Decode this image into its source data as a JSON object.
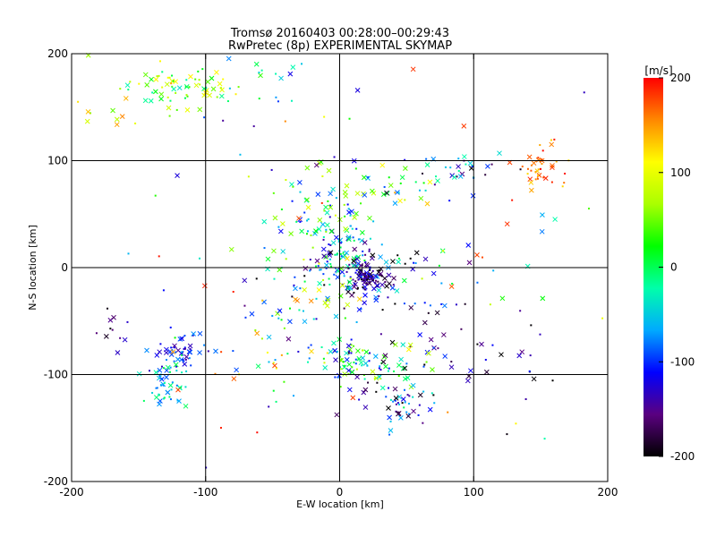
{
  "chart_data": {
    "type": "scatter",
    "title": "Tromsø 20160403 00:28:00–00:29:43",
    "subtitle": "RwPretec (8p) EXPERIMENTAL SKYMAP",
    "xlabel": "E-W location [km]",
    "ylabel": "N-S location [km]",
    "xlim": [
      -200,
      200
    ],
    "ylim": [
      -200,
      200
    ],
    "xticks": [
      "-200",
      "-100",
      "0",
      "100",
      "200"
    ],
    "yticks": [
      "-200",
      "-100",
      "0",
      "100",
      "200"
    ],
    "grid_x": [
      -100,
      0,
      100
    ],
    "grid_y": [
      -100,
      0,
      100
    ],
    "colorbar": {
      "label": "[m/s]",
      "range": [
        -200,
        200
      ],
      "ticks": [
        "200",
        "100",
        "0",
        "-100",
        "-200"
      ],
      "colormap": [
        "#000000",
        "#5a0080",
        "#0000ff",
        "#00aaff",
        "#00ffaa",
        "#00ff00",
        "#aaff00",
        "#ffff00",
        "#ff8800",
        "#ff0000"
      ]
    },
    "markers": [
      "x",
      "dot"
    ],
    "clusters": [
      {
        "cx": -120,
        "cy": 168,
        "sx": 22,
        "sy": 10,
        "n": 70,
        "v": 60,
        "dv": 90
      },
      {
        "cx": -55,
        "cy": 178,
        "sx": 18,
        "sy": 16,
        "n": 18,
        "v": -40,
        "dv": 80
      },
      {
        "cx": -175,
        "cy": 150,
        "sx": 12,
        "sy": 15,
        "n": 8,
        "v": 100,
        "dv": 80
      },
      {
        "cx": 90,
        "cy": 95,
        "sx": 20,
        "sy": 8,
        "n": 30,
        "v": -100,
        "dv": 100
      },
      {
        "cx": 150,
        "cy": 92,
        "sx": 10,
        "sy": 10,
        "n": 40,
        "v": 160,
        "dv": 40
      },
      {
        "cx": 40,
        "cy": 75,
        "sx": 18,
        "sy": 12,
        "n": 25,
        "v": 10,
        "dv": 120
      },
      {
        "cx": -10,
        "cy": 45,
        "sx": 22,
        "sy": 25,
        "n": 90,
        "v": -20,
        "dv": 120
      },
      {
        "cx": 5,
        "cy": 10,
        "sx": 12,
        "sy": 12,
        "n": 70,
        "v": -70,
        "dv": 90
      },
      {
        "cx": 20,
        "cy": -10,
        "sx": 8,
        "sy": 8,
        "n": 100,
        "v": -170,
        "dv": 60
      },
      {
        "cx": 40,
        "cy": -15,
        "sx": 35,
        "sy": 20,
        "n": 60,
        "v": -120,
        "dv": 140
      },
      {
        "cx": -20,
        "cy": -40,
        "sx": 20,
        "sy": 25,
        "n": 40,
        "v": 20,
        "dv": 150
      },
      {
        "cx": 10,
        "cy": -90,
        "sx": 15,
        "sy": 12,
        "n": 60,
        "v": -30,
        "dv": 120
      },
      {
        "cx": 45,
        "cy": -95,
        "sx": 20,
        "sy": 15,
        "n": 50,
        "v": -60,
        "dv": 150
      },
      {
        "cx": 45,
        "cy": -130,
        "sx": 15,
        "sy": 10,
        "n": 40,
        "v": -120,
        "dv": 90
      },
      {
        "cx": 105,
        "cy": -85,
        "sx": 30,
        "sy": 25,
        "n": 30,
        "v": -160,
        "dv": 60
      },
      {
        "cx": -120,
        "cy": -75,
        "sx": 10,
        "sy": 10,
        "n": 50,
        "v": -110,
        "dv": 40
      },
      {
        "cx": -128,
        "cy": -110,
        "sx": 9,
        "sy": 12,
        "n": 50,
        "v": -40,
        "dv": 50
      },
      {
        "cx": -170,
        "cy": -60,
        "sx": 8,
        "sy": 8,
        "n": 10,
        "v": -160,
        "dv": 40
      },
      {
        "cx": -60,
        "cy": -80,
        "sx": 25,
        "sy": 30,
        "n": 25,
        "v": 50,
        "dv": 150
      },
      {
        "cx": 0,
        "cy": 0,
        "sx": 110,
        "sy": 90,
        "n": 120,
        "v": 0,
        "dv": 200
      }
    ]
  }
}
